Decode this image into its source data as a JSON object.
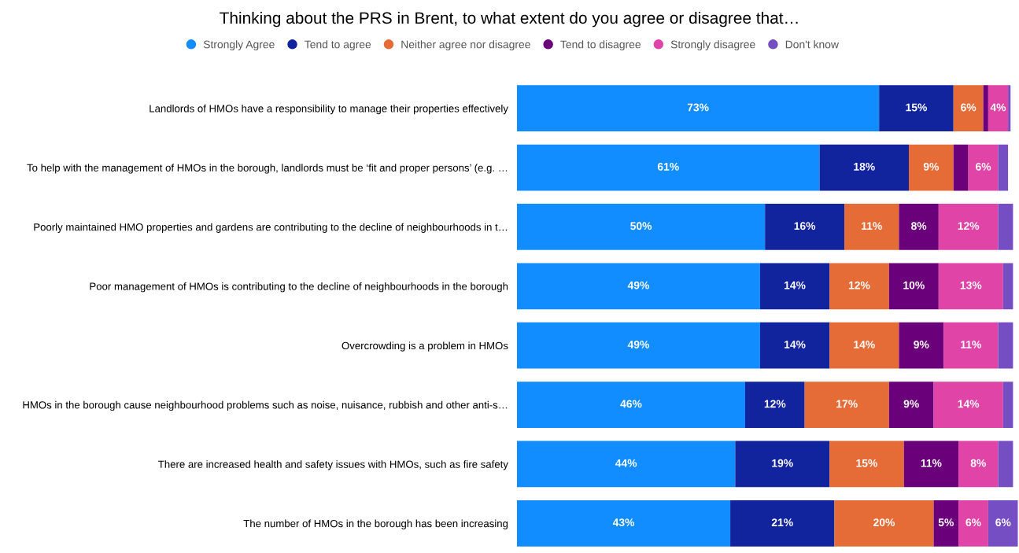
{
  "chart_data": {
    "type": "bar",
    "orientation": "horizontal",
    "stacked": true,
    "title": "Thinking about the PRS in Brent, to what extent do you agree or disagree that…",
    "categories": [
      "Landlords of HMOs have a responsibility to manage their properties effectively",
      "To help with the management of HMOs in the borough, landlords must be ‘fit and proper persons’ (e.g. …",
      "Poorly maintained HMO properties and gardens are contributing to the decline of neighbourhoods in t…",
      "Poor management of HMOs is contributing to the decline of neighbourhoods in the borough",
      "Overcrowding is a problem in HMOs",
      "HMOs in the borough cause neighbourhood problems such as noise, nuisance, rubbish and other anti-s…",
      "There are increased health and safety issues with HMOs, such as fire safety",
      "The number of HMOs in the borough has been increasing"
    ],
    "series": [
      {
        "name": "Strongly Agree",
        "color": "#118dff",
        "values": [
          73,
          61,
          50,
          49,
          49,
          46,
          44,
          43
        ],
        "value_labels": [
          "73%",
          "61%",
          "50%",
          "49%",
          "49%",
          "46%",
          "44%",
          "43%"
        ]
      },
      {
        "name": "Tend to agree",
        "color": "#12239e",
        "values": [
          15,
          18,
          16,
          14,
          14,
          12,
          19,
          21
        ],
        "value_labels": [
          "15%",
          "18%",
          "16%",
          "14%",
          "14%",
          "12%",
          "19%",
          "21%"
        ]
      },
      {
        "name": "Neither agree nor disagree",
        "color": "#e66c37",
        "values": [
          6,
          9,
          11,
          12,
          14,
          17,
          15,
          20
        ],
        "value_labels": [
          "6%",
          "9%",
          "11%",
          "12%",
          "14%",
          "17%",
          "15%",
          "20%"
        ]
      },
      {
        "name": "Tend to disagree",
        "color": "#6b007b",
        "values": [
          1,
          3,
          8,
          10,
          9,
          9,
          11,
          5
        ],
        "value_labels": [
          null,
          null,
          "8%",
          "10%",
          "9%",
          "9%",
          "11%",
          "5%"
        ]
      },
      {
        "name": "Strongly disagree",
        "color": "#e044a7",
        "values": [
          4,
          6,
          12,
          13,
          11,
          14,
          8,
          6
        ],
        "value_labels": [
          "4%",
          "6%",
          "12%",
          "13%",
          "11%",
          "14%",
          "8%",
          "6%"
        ]
      },
      {
        "name": "Don't know",
        "color": "#744ec2",
        "values": [
          0.5,
          2,
          3,
          2,
          3,
          2,
          3,
          6
        ],
        "value_labels": [
          null,
          null,
          null,
          null,
          null,
          null,
          null,
          "6%"
        ]
      }
    ],
    "xlim": [
      0,
      101
    ],
    "tick_labels": "y",
    "grid": false,
    "legend": "top",
    "marker": "circle"
  }
}
